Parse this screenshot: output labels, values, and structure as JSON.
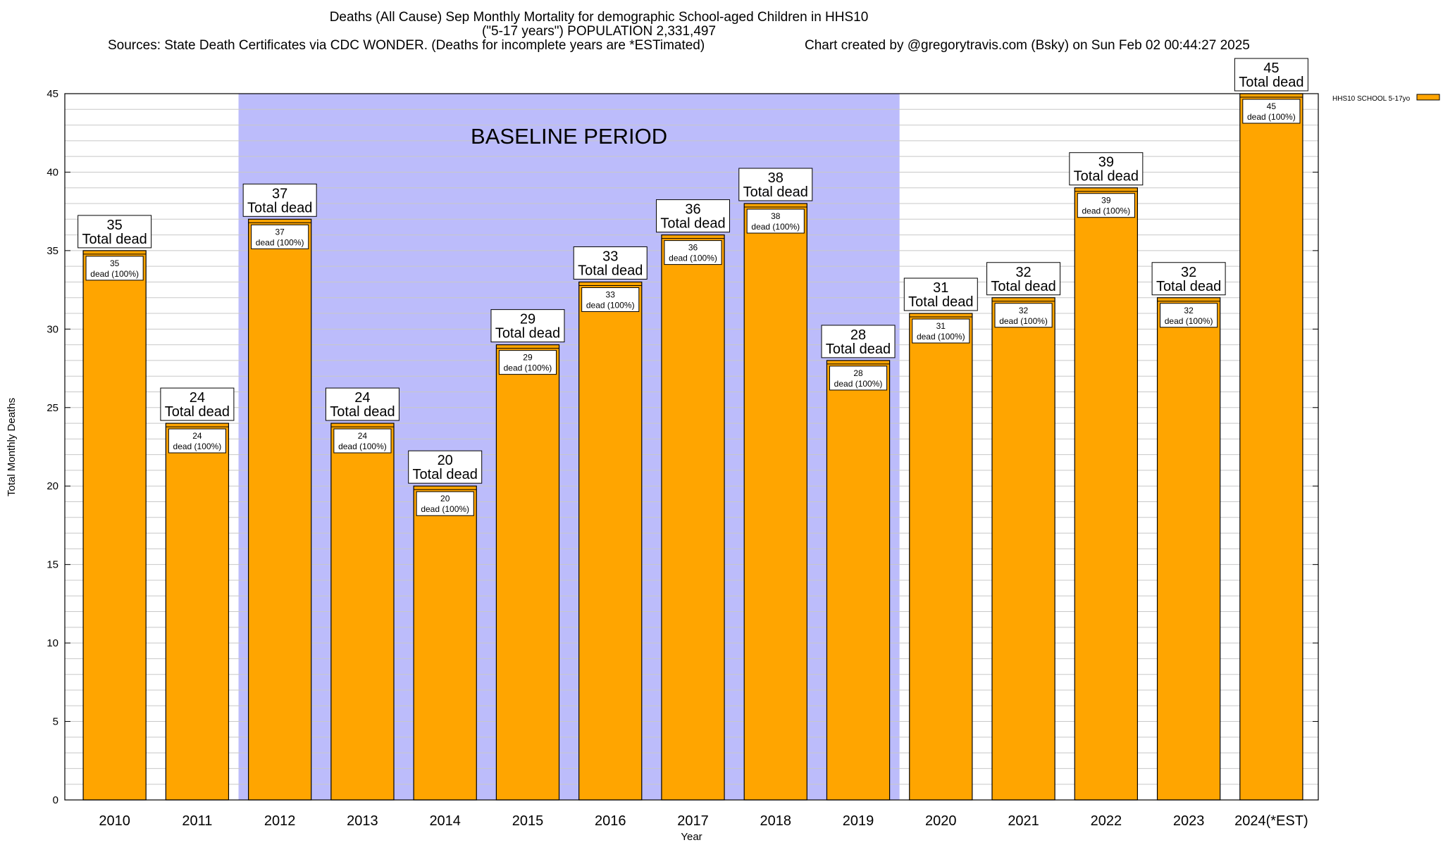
{
  "chart_data": {
    "type": "bar",
    "title": "Deaths (All Cause) Sep Monthly Mortality for demographic School-aged Children in HHS10",
    "subtitle": "(\"5-17 years\") POPULATION 2,331,497",
    "sources": "Sources: State Death Certificates via CDC WONDER. (Deaths for incomplete years are *ESTimated)",
    "credit": "Chart created by @gregorytravis.com (Bsky) on Sun Feb 02 00:44:27 2025",
    "xlabel": "Year",
    "ylabel": "Total Monthly Deaths",
    "ylim": [
      0,
      45
    ],
    "ytick_step": 5,
    "yticks": [
      "0",
      "5",
      "10",
      "15",
      "20",
      "25",
      "30",
      "35",
      "40",
      "45"
    ],
    "grid": true,
    "legend": {
      "placement": "top-right",
      "label": "HHS10 SCHOOL 5-17yo"
    },
    "baseline_label": "BASELINE PERIOD",
    "baseline_range": [
      "2012",
      "2019"
    ],
    "categories": [
      "2010",
      "2011",
      "2012",
      "2013",
      "2014",
      "2015",
      "2016",
      "2017",
      "2018",
      "2019",
      "2020",
      "2021",
      "2022",
      "2023",
      "2024(*EST)"
    ],
    "values": [
      35,
      24,
      37,
      24,
      20,
      29,
      33,
      36,
      38,
      28,
      31,
      32,
      39,
      32,
      45
    ],
    "top_label_suffix": "Total dead",
    "inner_label_suffix": "dead (100%)"
  },
  "colors": {
    "bar": "#ffa500",
    "baseline": "#bcbcfb",
    "grid": "#c8c8c8",
    "axis": "#000000"
  }
}
